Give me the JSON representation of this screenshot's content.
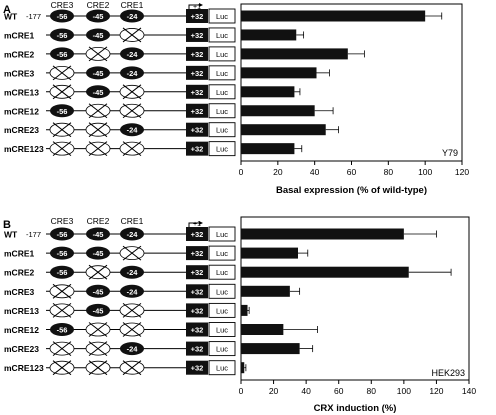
{
  "panels": [
    {
      "letter": "A",
      "cre_labels": [
        "CRE3",
        "CRE2",
        "CRE1"
      ],
      "tss_label": "+1",
      "wt_start": "-177",
      "site_positions": [
        "-56",
        "-45",
        "-24"
      ],
      "exon_label": "+32",
      "reporter_label": "Luc",
      "cell_line": "Y79",
      "rows": [
        {
          "construct": "WT",
          "sites": [
            true,
            true,
            true
          ]
        },
        {
          "construct": "mCRE1",
          "sites": [
            true,
            true,
            false
          ]
        },
        {
          "construct": "mCRE2",
          "sites": [
            true,
            false,
            true
          ]
        },
        {
          "construct": "mCRE3",
          "sites": [
            false,
            true,
            true
          ]
        },
        {
          "construct": "mCRE13",
          "sites": [
            false,
            true,
            false
          ]
        },
        {
          "construct": "mCRE12",
          "sites": [
            true,
            false,
            false
          ]
        },
        {
          "construct": "mCRE23",
          "sites": [
            false,
            false,
            true
          ]
        },
        {
          "construct": "mCRE123",
          "sites": [
            false,
            false,
            false
          ]
        }
      ]
    },
    {
      "letter": "B",
      "cre_labels": [
        "CRE3",
        "CRE2",
        "CRE1"
      ],
      "tss_label": "+1",
      "wt_start": "-177",
      "site_positions": [
        "-56",
        "-45",
        "-24"
      ],
      "exon_label": "+32",
      "reporter_label": "Luc",
      "cell_line": "HEK293",
      "rows": [
        {
          "construct": "WT",
          "sites": [
            true,
            true,
            true
          ]
        },
        {
          "construct": "mCRE1",
          "sites": [
            true,
            true,
            false
          ]
        },
        {
          "construct": "mCRE2",
          "sites": [
            true,
            false,
            true
          ]
        },
        {
          "construct": "mCRE3",
          "sites": [
            false,
            true,
            true
          ]
        },
        {
          "construct": "mCRE13",
          "sites": [
            false,
            true,
            false
          ]
        },
        {
          "construct": "mCRE12",
          "sites": [
            true,
            false,
            false
          ]
        },
        {
          "construct": "mCRE23",
          "sites": [
            false,
            false,
            true
          ]
        },
        {
          "construct": "mCRE123",
          "sites": [
            false,
            false,
            false
          ]
        }
      ]
    }
  ],
  "chart_data": [
    {
      "type": "bar",
      "orientation": "horizontal",
      "categories": [
        "WT",
        "mCRE1",
        "mCRE2",
        "mCRE3",
        "mCRE13",
        "mCRE12",
        "mCRE23",
        "mCRE123"
      ],
      "values": [
        100,
        30,
        58,
        41,
        29,
        40,
        46,
        29
      ],
      "errors": [
        9,
        4,
        9,
        7,
        3,
        10,
        7,
        4
      ],
      "xlabel": "Basal expression (% of wild-type)",
      "xlim": [
        0,
        120
      ],
      "ticks": [
        0,
        20,
        40,
        60,
        80,
        100,
        120
      ],
      "annotation": "Y79"
    },
    {
      "type": "bar",
      "orientation": "horizontal",
      "categories": [
        "WT",
        "mCRE1",
        "mCRE2",
        "mCRE3",
        "mCRE13",
        "mCRE12",
        "mCRE23",
        "mCRE123"
      ],
      "values": [
        100,
        35,
        103,
        30,
        4,
        26,
        36,
        2
      ],
      "errors": [
        20,
        6,
        26,
        6,
        1,
        21,
        8,
        1
      ],
      "xlabel": "CRX induction (%)",
      "xlim": [
        0,
        140
      ],
      "ticks": [
        0,
        20,
        40,
        60,
        80,
        100,
        120,
        140
      ],
      "annotation": "HEK293"
    }
  ]
}
